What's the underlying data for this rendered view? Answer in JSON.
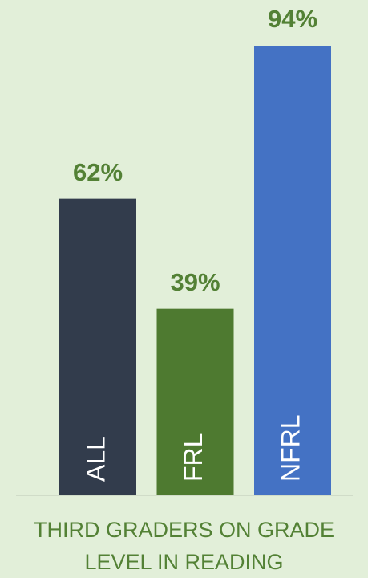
{
  "chart_data": {
    "type": "bar",
    "title": "THIRD GRADERS ON GRADE LEVEL IN READING",
    "categories": [
      "ALL",
      "FRL",
      "NFRL"
    ],
    "values": [
      62,
      39,
      94
    ],
    "value_labels": [
      "62%",
      "39%",
      "94%"
    ],
    "colors": [
      "#323c4c",
      "#4e7a30",
      "#4472c4"
    ]
  }
}
